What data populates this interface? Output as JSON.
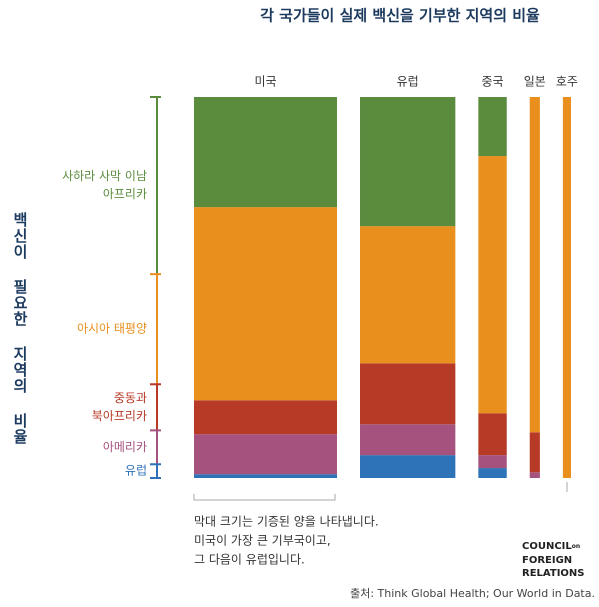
{
  "chart_data": {
    "type": "marimekko",
    "title": "각 국가들이 실제 백신을 기부한 지역의 비율",
    "y_label": "백신이 필요한 지역의 비율",
    "categories": [
      "미국",
      "유럽",
      "중국",
      "일본",
      "호주"
    ],
    "widths": [
      141,
      94,
      28,
      10,
      8
    ],
    "ylim": [
      0,
      100
    ],
    "series": [
      {
        "name_lines": [
          "사하라 사막 이남",
          "아프리카"
        ],
        "color": "#5b8c3e",
        "need": 46.5,
        "values": [
          28.9,
          33.9,
          15.5,
          0,
          0
        ]
      },
      {
        "name_lines": [
          "아시아 태평양"
        ],
        "color": "#e88f1e",
        "need": 28.9,
        "values": [
          50.7,
          36.0,
          67.5,
          88.0,
          100
        ]
      },
      {
        "name_lines": [
          "중동과",
          "북아프리카"
        ],
        "color": "#b73a26",
        "need": 12.1,
        "values": [
          8.9,
          16.0,
          11.0,
          10.5,
          0
        ]
      },
      {
        "name_lines": [
          "아메리카"
        ],
        "color": "#a5527f",
        "need": 8.9,
        "values": [
          10.5,
          8.1,
          3.4,
          1.5,
          0
        ]
      },
      {
        "name_lines": [
          "유럽"
        ],
        "color": "#2e72b8",
        "need": 3.6,
        "values": [
          1.0,
          6.0,
          2.6,
          0,
          0
        ]
      }
    ],
    "note": [
      "막대 크기는 기증된 양을 나타냅니다.",
      "미국이 가장 큰 기부국이고,",
      "그 다음이 유럽입니다."
    ],
    "logo": [
      "COUNCIL",
      "on",
      "FOREIGN",
      "RELATIONS"
    ],
    "source": "출처: Think Global Health; Our World in Data."
  }
}
